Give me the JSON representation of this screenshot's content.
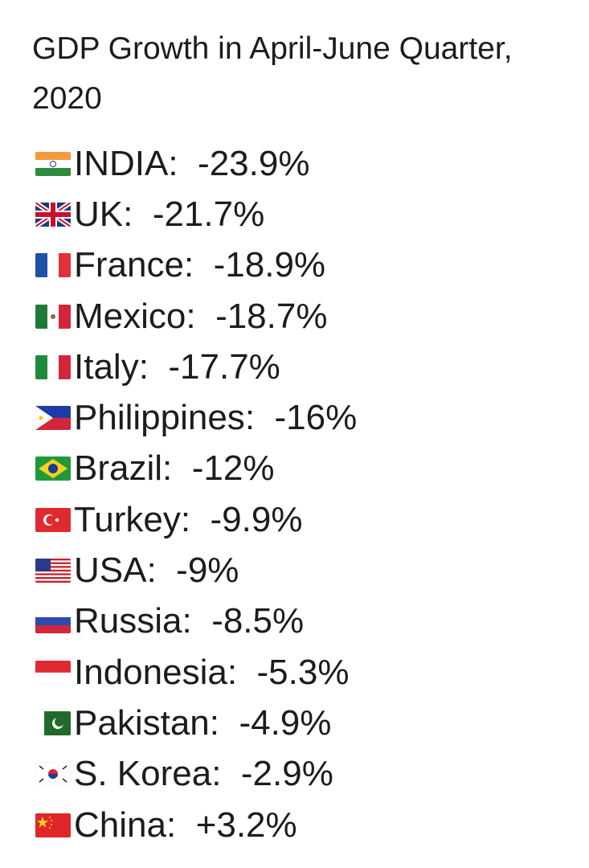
{
  "title": "GDP Growth in April-June Quarter, 2020",
  "rows": [
    {
      "flag": "india-flag-icon",
      "country": "INDIA",
      "value": "-23.9%"
    },
    {
      "flag": "uk-flag-icon",
      "country": "UK",
      "value": "-21.7%"
    },
    {
      "flag": "france-flag-icon",
      "country": "France",
      "value": "-18.9%"
    },
    {
      "flag": "mexico-flag-icon",
      "country": "Mexico",
      "value": "-18.7%"
    },
    {
      "flag": "italy-flag-icon",
      "country": "Italy",
      "value": "-17.7%"
    },
    {
      "flag": "philippines-flag-icon",
      "country": "Philippines",
      "value": "-16%"
    },
    {
      "flag": "brazil-flag-icon",
      "country": "Brazil",
      "value": "-12%"
    },
    {
      "flag": "turkey-flag-icon",
      "country": "Turkey",
      "value": "-9.9%"
    },
    {
      "flag": "usa-flag-icon",
      "country": "USA",
      "value": "-9%"
    },
    {
      "flag": "russia-flag-icon",
      "country": "Russia",
      "value": "-8.5%"
    },
    {
      "flag": "indonesia-flag-icon",
      "country": "Indonesia",
      "value": "-5.3%"
    },
    {
      "flag": "pakistan-flag-icon",
      "country": "Pakistan",
      "value": "-4.9%"
    },
    {
      "flag": "south-korea-flag-icon",
      "country": "S. Korea",
      "value": "-2.9%"
    },
    {
      "flag": "china-flag-icon",
      "country": "China",
      "value": "+3.2%"
    }
  ]
}
